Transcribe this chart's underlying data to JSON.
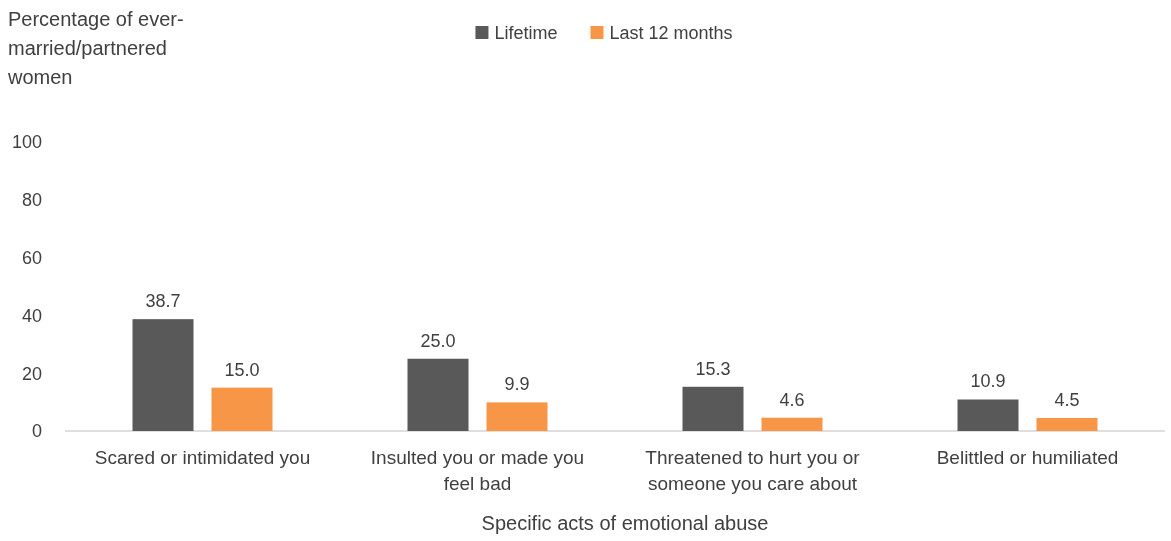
{
  "chart_data": {
    "type": "bar",
    "ylabel": "Percentage of ever-married/partnered women",
    "xlabel": "Specific acts of emotional abuse",
    "categories": [
      "Scared or intimidated you",
      "Insulted you or made you feel bad",
      "Threatened to hurt you or someone you care about",
      "Belittled or humiliated"
    ],
    "series": [
      {
        "name": "Lifetime",
        "color": "#595959",
        "values": [
          38.7,
          25.0,
          15.3,
          10.9
        ],
        "value_labels": [
          "38.7",
          "25.0",
          "15.3",
          "10.9"
        ]
      },
      {
        "name": "Last 12 months",
        "color": "#f79646",
        "values": [
          15.0,
          9.9,
          4.6,
          4.5
        ],
        "value_labels": [
          "15.0",
          "9.9",
          "4.6",
          "4.5"
        ]
      }
    ],
    "ylim": [
      0,
      100
    ],
    "yticks": [
      0,
      20,
      40,
      60,
      80,
      100
    ],
    "legend": "top",
    "grid": false
  }
}
